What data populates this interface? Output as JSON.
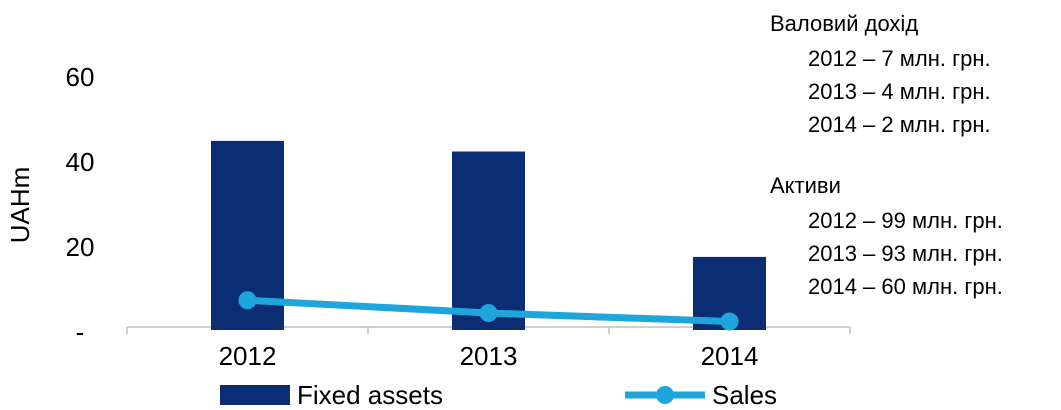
{
  "chart_data": {
    "type": "bar",
    "ylabel": "UAHm",
    "categories": [
      "2012",
      "2013",
      "2014"
    ],
    "series": [
      {
        "name": "Fixed assets",
        "type": "bar",
        "color": "#0b2d74",
        "values": [
          44.5,
          42,
          17.2
        ]
      },
      {
        "name": "Sales",
        "type": "line",
        "color": "#1ea6dc",
        "values": [
          7,
          4,
          2
        ]
      }
    ],
    "ylim": [
      0,
      70
    ],
    "yticks": [
      {
        "value": 0,
        "label": "-"
      },
      20,
      40,
      60
    ]
  },
  "notes": [
    {
      "title": "Валовий дохід",
      "items": [
        "2012 – 7 млн. грн.",
        "2013 – 4 млн. грн.",
        "2014 – 2 млн. грн."
      ]
    },
    {
      "title": "Активи",
      "items": [
        "2012 – 99 млн. грн.",
        "2013 – 93 млн. грн.",
        "2014 – 60 млн. грн."
      ]
    }
  ]
}
